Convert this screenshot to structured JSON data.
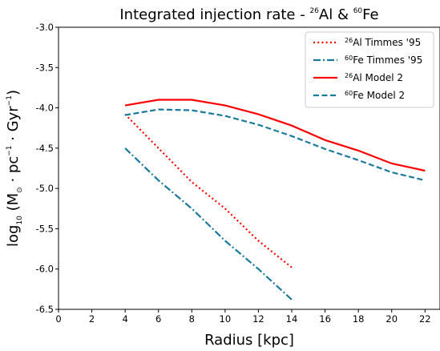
{
  "chart_data": {
    "type": "line",
    "title": {
      "prefix": "Integrated injection rate - ",
      "a1": "26",
      "b1": "Al & ",
      "a2": "60",
      "b2": "Fe"
    },
    "xlabel": "Radius [kpc]",
    "ylabel": {
      "p1": "log",
      "sub": "10",
      "p2": " (M",
      "sun": "⊙",
      "p3": " · pc",
      "e1": "−1",
      "p4": " · Gyr",
      "e2": "−1",
      "p5": ")"
    },
    "xlim": [
      0,
      22.9
    ],
    "ylim": [
      -6.5,
      -3.0
    ],
    "xticks": [
      0,
      2,
      4,
      6,
      8,
      10,
      12,
      14,
      16,
      18,
      20,
      22
    ],
    "yticks": [
      -3.0,
      -3.5,
      -4.0,
      -4.5,
      -5.0,
      -5.5,
      -6.0,
      -6.5
    ],
    "xtick_labels": [
      "0",
      "2",
      "4",
      "6",
      "8",
      "10",
      "12",
      "14",
      "16",
      "18",
      "20",
      "22"
    ],
    "ytick_labels": [
      "-3.0",
      "-3.5",
      "-4.0",
      "-4.5",
      "-5.0",
      "-5.5",
      "-6.0",
      "-6.5"
    ],
    "legend_position": "top-right",
    "series": [
      {
        "id": "al_timmes",
        "iso": "26",
        "name": "Al Timmes '95",
        "color": "#ff0000",
        "dash": "dotted",
        "x": [
          4,
          6,
          8,
          10,
          12,
          14
        ],
        "y": [
          -4.08,
          -4.5,
          -4.92,
          -5.25,
          -5.65,
          -5.98
        ]
      },
      {
        "id": "fe_timmes",
        "iso": "60",
        "name": "Fe Timmes '95",
        "color": "#1a7a9e",
        "dash": "dashdot",
        "x": [
          4,
          6,
          8,
          10,
          12,
          14
        ],
        "y": [
          -4.5,
          -4.9,
          -5.25,
          -5.65,
          -6.0,
          -6.38
        ]
      },
      {
        "id": "al_model2",
        "iso": "26",
        "name": "Al Model 2",
        "color": "#ff0000",
        "dash": "solid",
        "x": [
          4,
          6,
          8,
          10,
          12,
          14,
          16,
          18,
          20,
          22
        ],
        "y": [
          -3.97,
          -3.9,
          -3.9,
          -3.97,
          -4.08,
          -4.22,
          -4.4,
          -4.53,
          -4.69,
          -4.78
        ]
      },
      {
        "id": "fe_model2",
        "iso": "60",
        "name": "Fe Model 2",
        "color": "#1a7a9e",
        "dash": "dashed",
        "x": [
          4,
          6,
          8,
          10,
          12,
          14,
          16,
          18,
          20,
          22
        ],
        "y": [
          -4.09,
          -4.02,
          -4.03,
          -4.1,
          -4.21,
          -4.35,
          -4.51,
          -4.65,
          -4.8,
          -4.9
        ]
      }
    ]
  }
}
